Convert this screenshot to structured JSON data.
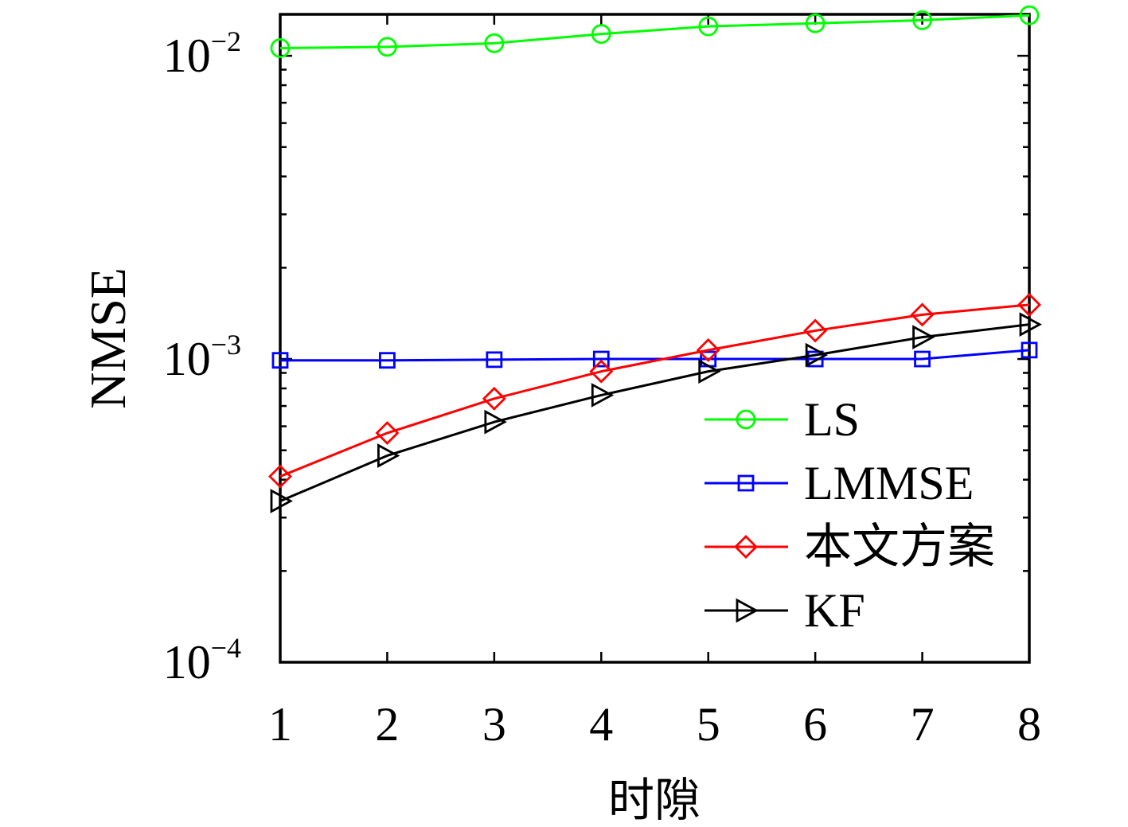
{
  "chart_data": {
    "type": "line",
    "x": [
      1,
      2,
      3,
      4,
      5,
      6,
      7,
      8
    ],
    "xlabel": "时隙",
    "ylabel": "NMSE",
    "xlim": [
      1,
      8
    ],
    "ylim": [
      0.0001,
      0.0137
    ],
    "yscale": "log",
    "grid": false,
    "legend_position": "lower-right",
    "xticks": [
      {
        "value": 1,
        "label": "1"
      },
      {
        "value": 2,
        "label": "2"
      },
      {
        "value": 3,
        "label": "3"
      },
      {
        "value": 4,
        "label": "4"
      },
      {
        "value": 5,
        "label": "5"
      },
      {
        "value": 6,
        "label": "6"
      },
      {
        "value": 7,
        "label": "7"
      },
      {
        "value": 8,
        "label": "8"
      }
    ],
    "yticks": [
      {
        "value": 0.0001,
        "base": "10",
        "exp": "−4"
      },
      {
        "value": 0.001,
        "base": "10",
        "exp": "−3"
      },
      {
        "value": 0.01,
        "base": "10",
        "exp": "−2"
      }
    ],
    "series": [
      {
        "name": "LS",
        "color": "#00ff00",
        "marker": "circle",
        "values": [
          0.0106,
          0.0107,
          0.011,
          0.0118,
          0.0125,
          0.0128,
          0.0131,
          0.0136
        ]
      },
      {
        "name": "LMMSE",
        "color": "#0000ff",
        "marker": "square",
        "values": [
          0.00099,
          0.00099,
          0.000995,
          0.001,
          0.001,
          0.001,
          0.001,
          0.00107
        ]
      },
      {
        "name": "本文方案",
        "color": "#ff0000",
        "marker": "diamond",
        "values": [
          0.00041,
          0.00057,
          0.00074,
          0.00091,
          0.00107,
          0.00124,
          0.0014,
          0.00151
        ]
      },
      {
        "name": "KF",
        "color": "#000000",
        "marker": "triangle-right",
        "values": [
          0.00034,
          0.00048,
          0.00062,
          0.00076,
          0.00091,
          0.00103,
          0.00118,
          0.0013
        ]
      }
    ]
  }
}
